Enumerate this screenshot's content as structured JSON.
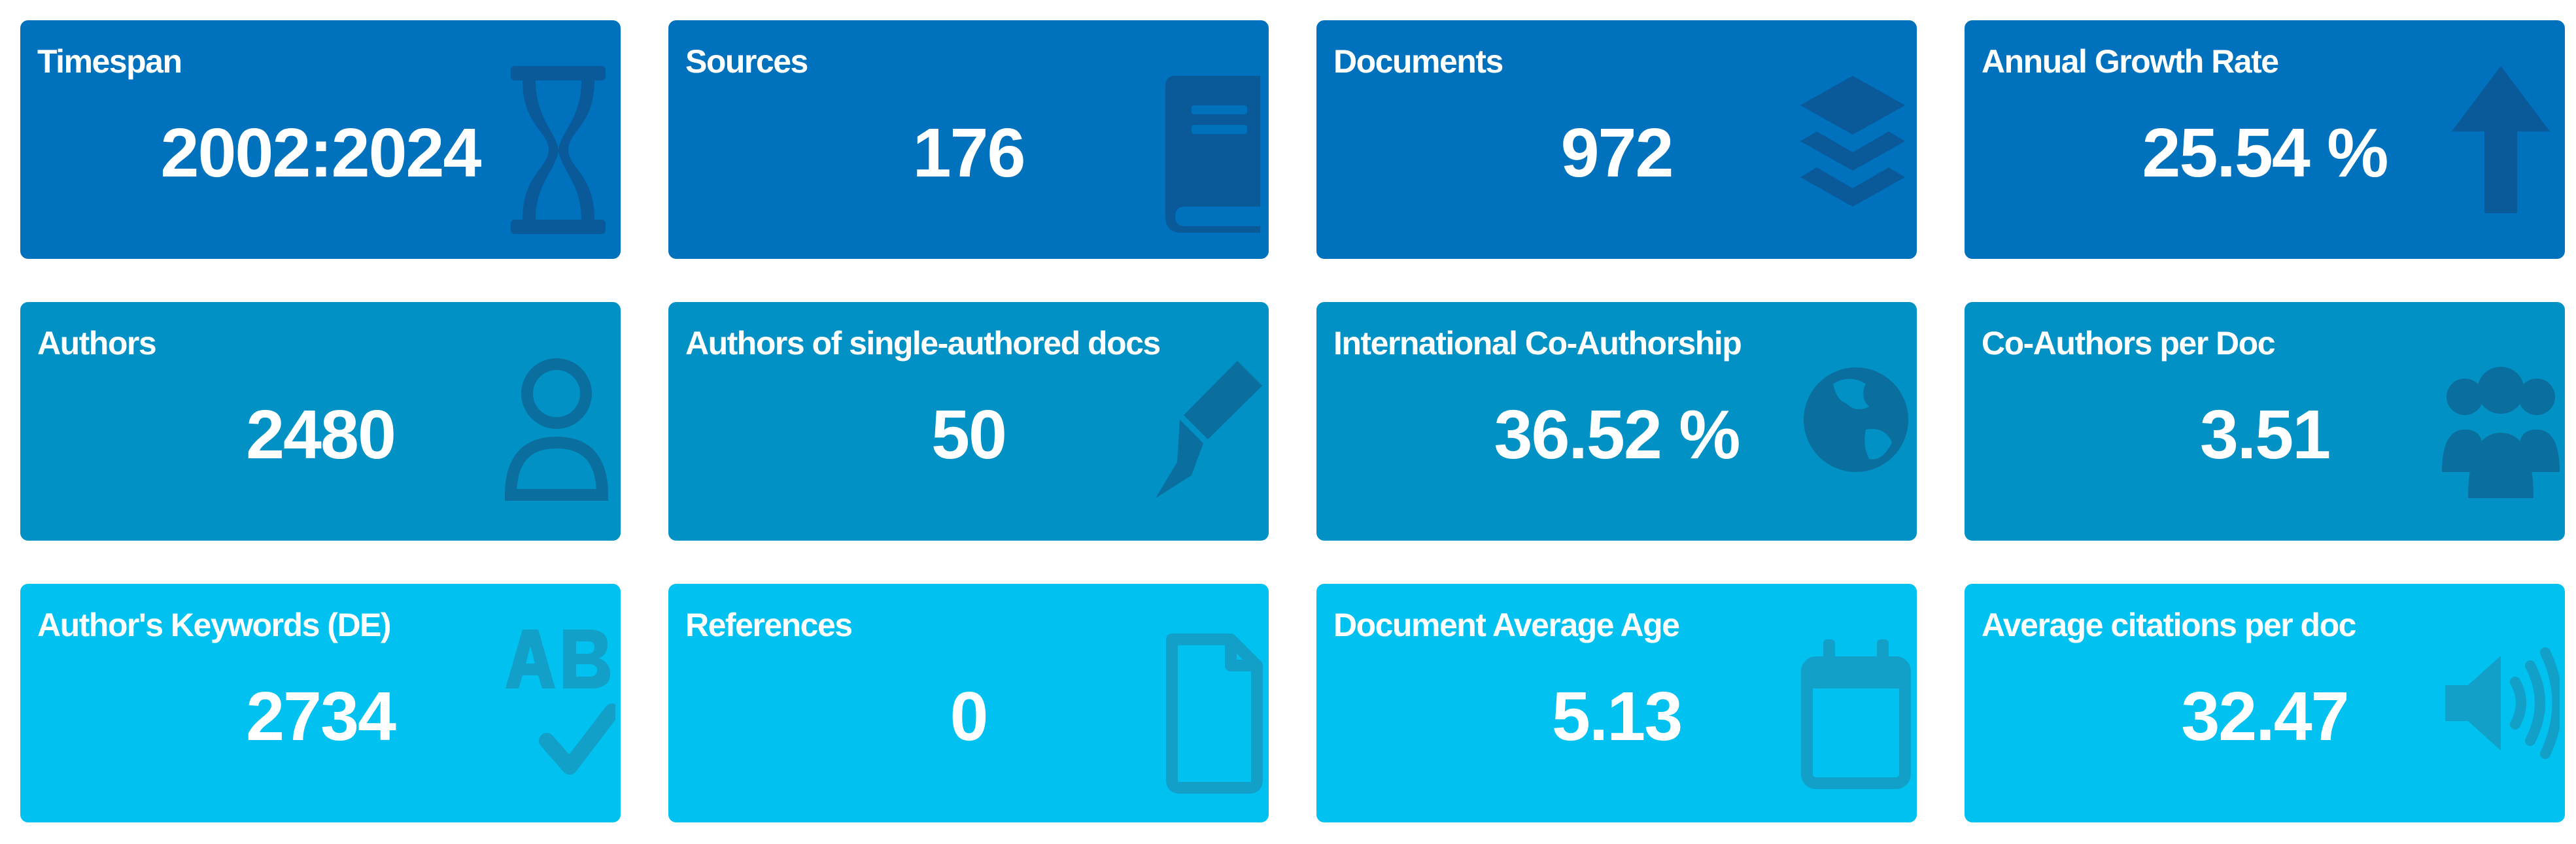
{
  "colors": {
    "row1": "#0071bc",
    "row2": "#0191c4",
    "row3": "#00c1f0",
    "text": "#ffffff"
  },
  "cards": [
    {
      "label": "Timespan",
      "value": "2002:2024",
      "icon": "hourglass-icon"
    },
    {
      "label": "Sources",
      "value": "176",
      "icon": "book-icon"
    },
    {
      "label": "Documents",
      "value": "972",
      "icon": "layers-icon"
    },
    {
      "label": "Annual Growth Rate",
      "value": "25.54 %",
      "icon": "arrow-up-icon"
    },
    {
      "label": "Authors",
      "value": "2480",
      "icon": "user-icon"
    },
    {
      "label": "Authors of single-authored docs",
      "value": "50",
      "icon": "pen-icon"
    },
    {
      "label": "International Co-Authorship",
      "value": "36.52 %",
      "icon": "globe-icon"
    },
    {
      "label": "Co-Authors per Doc",
      "value": "3.51",
      "icon": "users-icon"
    },
    {
      "label": "Author's Keywords (DE)",
      "value": "2734",
      "icon": "spell-check-icon"
    },
    {
      "label": "References",
      "value": "0",
      "icon": "file-icon"
    },
    {
      "label": "Document Average Age",
      "value": "5.13",
      "icon": "calendar-icon"
    },
    {
      "label": "Average citations per doc",
      "value": "32.47",
      "icon": "volume-icon"
    }
  ]
}
